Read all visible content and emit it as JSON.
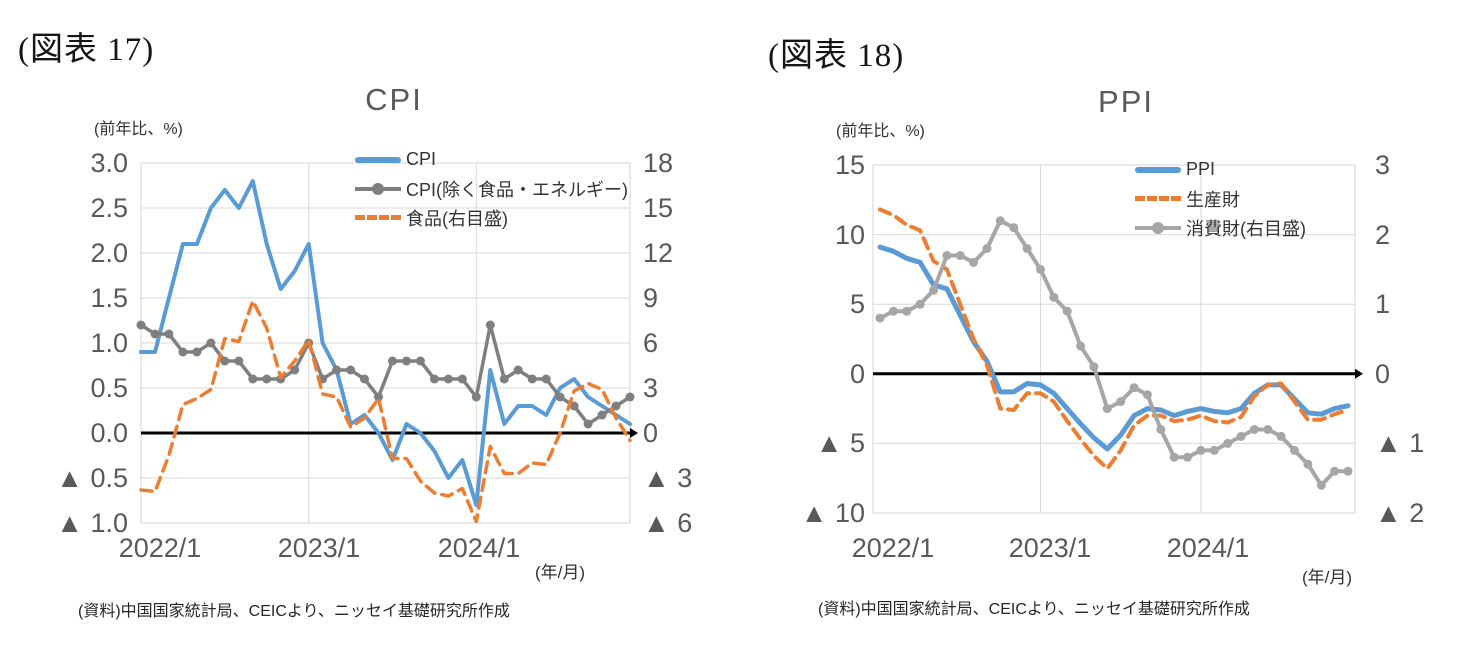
{
  "page": {
    "background": "#FFFFFF"
  },
  "chart_data": [
    {
      "type": "line",
      "figure_label": "(図表 17)",
      "title": "CPI",
      "unit_label": "(前年比、%)",
      "x_axis_note": "(年/月)",
      "source_note": "(資料)中国国家統計局、CEICより、ニッセイ基礎研究所作成",
      "x_start": "2022/1",
      "x_end": "2024/12",
      "x_tick_labels": [
        "2022/1",
        "2023/1",
        "2024/1"
      ],
      "grid": true,
      "legend_position": "top-right",
      "left_axis": {
        "max": 3.0,
        "min": -1.0,
        "ticks": [
          "3.0",
          "2.5",
          "2.0",
          "1.5",
          "1.0",
          "0.5",
          "0.0",
          "▲ 0.5",
          "▲ 1.0"
        ]
      },
      "right_axis": {
        "max": 18,
        "min": -6,
        "ticks": [
          "18",
          "15",
          "12",
          "9",
          "6",
          "3",
          "0",
          "▲ 3",
          "▲ 6"
        ]
      },
      "series": [
        {
          "name": "CPI",
          "axis": "left",
          "color": "#5B9BD5",
          "line_style": "solid",
          "markers": false,
          "values": [
            0.9,
            0.9,
            1.5,
            2.1,
            2.1,
            2.5,
            2.7,
            2.5,
            2.8,
            2.1,
            1.6,
            1.8,
            2.1,
            1.0,
            0.7,
            0.1,
            0.2,
            0.0,
            -0.3,
            0.1,
            0.0,
            -0.2,
            -0.5,
            -0.3,
            -0.8,
            0.7,
            0.1,
            0.3,
            0.3,
            0.2,
            0.5,
            0.6,
            0.4,
            0.3,
            0.2,
            0.1
          ]
        },
        {
          "name": "CPI(除く食品・エネルギー)",
          "axis": "left",
          "color": "#7F7F7F",
          "line_style": "solid",
          "markers": true,
          "values": [
            1.2,
            1.1,
            1.1,
            0.9,
            0.9,
            1.0,
            0.8,
            0.8,
            0.6,
            0.6,
            0.6,
            0.7,
            1.0,
            0.6,
            0.7,
            0.7,
            0.6,
            0.4,
            0.8,
            0.8,
            0.8,
            0.6,
            0.6,
            0.6,
            0.4,
            1.2,
            0.6,
            0.7,
            0.6,
            0.6,
            0.4,
            0.3,
            0.1,
            0.2,
            0.3,
            0.4
          ]
        },
        {
          "name": "食品(右目盛)",
          "axis": "right",
          "color": "#ED7D31",
          "line_style": "dashed",
          "markers": false,
          "values": [
            -3.8,
            -3.9,
            -1.5,
            1.9,
            2.3,
            2.9,
            6.3,
            6.1,
            8.8,
            7.0,
            3.7,
            4.8,
            6.2,
            2.6,
            2.4,
            0.4,
            1.0,
            2.3,
            -1.7,
            -1.7,
            -3.2,
            -4.0,
            -4.2,
            -3.7,
            -5.9,
            -0.9,
            -2.7,
            -2.7,
            -2.0,
            -2.1,
            0.0,
            2.8,
            3.3,
            2.9,
            1.0,
            -0.5
          ]
        }
      ]
    },
    {
      "type": "line",
      "figure_label": "(図表 18)",
      "title": "PPI",
      "unit_label": "(前年比、%)",
      "x_axis_note": "(年/月)",
      "source_note": "(資料)中国国家統計局、CEICより、ニッセイ基礎研究所作成",
      "x_start": "2022/1",
      "x_end": "2024/12",
      "x_tick_labels": [
        "2022/1",
        "2023/1",
        "2024/1"
      ],
      "grid": true,
      "legend_position": "top-right",
      "left_axis": {
        "max": 15,
        "min": -10,
        "ticks": [
          "15",
          "10",
          "5",
          "0",
          "▲ 5",
          "▲ 10"
        ]
      },
      "right_axis": {
        "max": 3,
        "min": -2,
        "ticks": [
          "3",
          "2",
          "1",
          "0",
          "▲ 1",
          "▲ 2"
        ]
      },
      "series": [
        {
          "name": "PPI",
          "axis": "left",
          "color": "#5B9BD5",
          "line_style": "solid",
          "markers": false,
          "values": [
            9.1,
            8.8,
            8.3,
            8.0,
            6.4,
            6.1,
            4.2,
            2.3,
            0.9,
            -1.3,
            -1.3,
            -0.7,
            -0.8,
            -1.4,
            -2.5,
            -3.6,
            -4.6,
            -5.4,
            -4.4,
            -3.0,
            -2.5,
            -2.6,
            -3.0,
            -2.7,
            -2.5,
            -2.7,
            -2.8,
            -2.5,
            -1.4,
            -0.8,
            -0.8,
            -1.8,
            -2.8,
            -2.9,
            -2.5,
            -2.3
          ]
        },
        {
          "name": "生産財",
          "axis": "left",
          "color": "#ED7D31",
          "line_style": "dashed",
          "markers": false,
          "values": [
            11.8,
            11.4,
            10.7,
            10.3,
            8.1,
            7.5,
            5.0,
            2.5,
            0.6,
            -2.5,
            -2.6,
            -1.4,
            -1.4,
            -2.0,
            -3.4,
            -4.7,
            -5.9,
            -6.8,
            -5.5,
            -3.7,
            -3.0,
            -3.0,
            -3.4,
            -3.3,
            -3.0,
            -3.4,
            -3.5,
            -3.1,
            -1.6,
            -0.8,
            -0.7,
            -2.0,
            -3.3,
            -3.3,
            -2.9,
            -2.6
          ]
        },
        {
          "name": "消費財(右目盛)",
          "axis": "right",
          "color": "#A6A6A6",
          "line_style": "solid",
          "markers": true,
          "values": [
            0.8,
            0.9,
            0.9,
            1.0,
            1.2,
            1.7,
            1.7,
            1.6,
            1.8,
            2.2,
            2.1,
            1.8,
            1.5,
            1.1,
            0.9,
            0.4,
            0.1,
            -0.5,
            -0.4,
            -0.2,
            -0.3,
            -0.8,
            -1.2,
            -1.2,
            -1.1,
            -1.1,
            -1.0,
            -0.9,
            -0.8,
            -0.8,
            -0.9,
            -1.1,
            -1.3,
            -1.6,
            -1.4,
            -1.4
          ]
        }
      ]
    }
  ]
}
